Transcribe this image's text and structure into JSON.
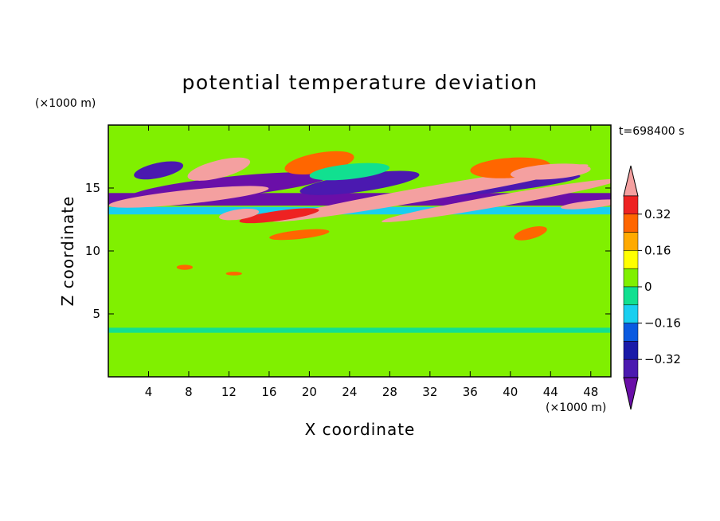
{
  "chart_data": {
    "type": "heatmap",
    "title": "potential temperature deviation",
    "xlabel": "X coordinate",
    "ylabel": "Z coordinate",
    "x_unit": "(×1000 m)",
    "y_unit": "(×1000 m)",
    "time_label": "t=698400 s",
    "xlim": [
      0,
      50
    ],
    "ylim": [
      0,
      20
    ],
    "x_ticks": [
      4,
      8,
      12,
      16,
      20,
      24,
      28,
      32,
      36,
      40,
      44,
      48
    ],
    "y_ticks": [
      5,
      10,
      15
    ],
    "colorbar": {
      "levels": [
        -0.48,
        -0.4,
        -0.32,
        -0.24,
        -0.16,
        -0.08,
        0,
        0.08,
        0.16,
        0.24,
        0.32,
        0.4,
        0.48
      ],
      "colors": [
        "#6a0fa8",
        "#4b19b0",
        "#1a1aa8",
        "#0a5ae0",
        "#19cff0",
        "#11e090",
        "#80f000",
        "#ffff00",
        "#ffaa00",
        "#ff6600",
        "#ee2222",
        "#f4a0a0"
      ],
      "labels": [
        "0.32",
        "0.16",
        "0",
        "−0.16",
        "−0.32"
      ],
      "label_values": [
        0.32,
        0.16,
        0,
        -0.16,
        -0.32
      ]
    },
    "background_color": "#80f000",
    "features": [
      {
        "shape": "band",
        "x": [
          0,
          50
        ],
        "y": [
          13.6,
          14.6
        ],
        "value": -0.42
      },
      {
        "shape": "band",
        "x": [
          0,
          50
        ],
        "y": [
          12.9,
          13.5
        ],
        "value": -0.12
      },
      {
        "shape": "ellipse",
        "cx": 12,
        "cy": 15.1,
        "rx": 10,
        "ry": 0.8,
        "rot": -6,
        "value": -0.42
      },
      {
        "shape": "ellipse",
        "cx": 25,
        "cy": 15.4,
        "rx": 6,
        "ry": 0.7,
        "rot": -8,
        "value": -0.36
      },
      {
        "shape": "ellipse",
        "cx": 38,
        "cy": 15.2,
        "rx": 9,
        "ry": 0.6,
        "rot": -6,
        "value": -0.4
      },
      {
        "shape": "ellipse",
        "cx": 8,
        "cy": 14.3,
        "rx": 8,
        "ry": 0.55,
        "rot": -6,
        "value": 0.42
      },
      {
        "shape": "ellipse",
        "cx": 32,
        "cy": 14.6,
        "rx": 16,
        "ry": 0.55,
        "rot": -10,
        "value": 0.45
      },
      {
        "shape": "ellipse",
        "cx": 39,
        "cy": 14.0,
        "rx": 12,
        "ry": 0.45,
        "rot": -10,
        "value": 0.42
      },
      {
        "shape": "ellipse",
        "cx": 11,
        "cy": 16.5,
        "rx": 3.2,
        "ry": 0.7,
        "rot": -14,
        "value": 0.42
      },
      {
        "shape": "ellipse",
        "cx": 21,
        "cy": 17.0,
        "rx": 3.5,
        "ry": 0.8,
        "rot": -10,
        "value": 0.24
      },
      {
        "shape": "ellipse",
        "cx": 40,
        "cy": 16.6,
        "rx": 4,
        "ry": 0.8,
        "rot": -4,
        "value": 0.24
      },
      {
        "shape": "ellipse",
        "cx": 44,
        "cy": 16.3,
        "rx": 4,
        "ry": 0.6,
        "rot": -4,
        "value": 0.45
      },
      {
        "shape": "ellipse",
        "cx": 5,
        "cy": 16.4,
        "rx": 2.5,
        "ry": 0.6,
        "rot": -12,
        "value": -0.36
      },
      {
        "shape": "ellipse",
        "cx": 24,
        "cy": 16.3,
        "rx": 4,
        "ry": 0.6,
        "rot": -6,
        "value": -0.08
      },
      {
        "shape": "ellipse",
        "cx": 17,
        "cy": 12.8,
        "rx": 4,
        "ry": 0.4,
        "rot": -8,
        "value": 0.32
      },
      {
        "shape": "ellipse",
        "cx": 13,
        "cy": 12.9,
        "rx": 2,
        "ry": 0.4,
        "rot": -8,
        "value": 0.42
      },
      {
        "shape": "ellipse",
        "cx": 19,
        "cy": 11.3,
        "rx": 3,
        "ry": 0.35,
        "rot": -6,
        "value": 0.24
      },
      {
        "shape": "ellipse",
        "cx": 42,
        "cy": 11.4,
        "rx": 1.7,
        "ry": 0.45,
        "rot": -15,
        "value": 0.3
      },
      {
        "shape": "ellipse",
        "cx": 48,
        "cy": 13.7,
        "rx": 3,
        "ry": 0.3,
        "rot": -6,
        "value": 0.45
      },
      {
        "shape": "ellipse",
        "cx": 7.6,
        "cy": 8.7,
        "rx": 0.8,
        "ry": 0.2,
        "rot": 0,
        "value": 0.24
      },
      {
        "shape": "ellipse",
        "cx": 12.5,
        "cy": 8.2,
        "rx": 0.8,
        "ry": 0.15,
        "rot": 0,
        "value": 0.24
      },
      {
        "shape": "band",
        "x": [
          0,
          50
        ],
        "y": [
          3.5,
          3.9
        ],
        "value": -0.05
      }
    ]
  }
}
